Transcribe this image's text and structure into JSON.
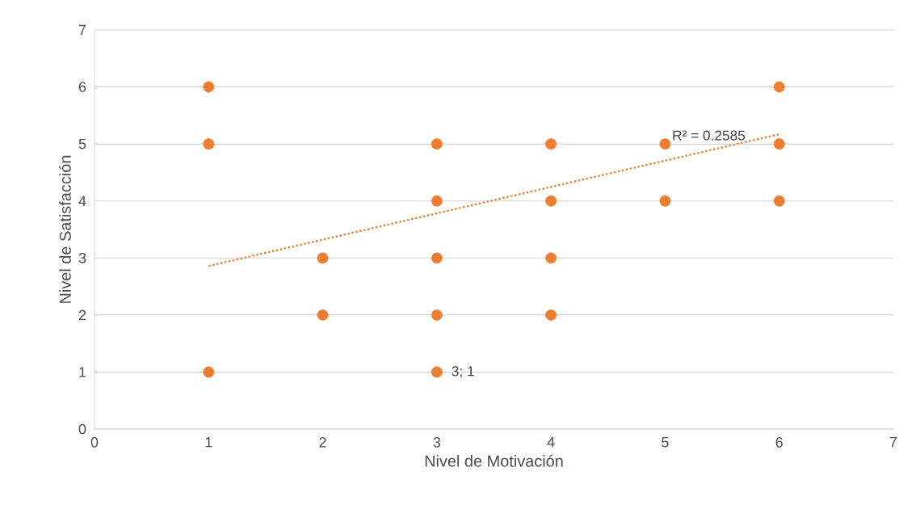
{
  "chart_data": {
    "type": "scatter",
    "xlabel": "Nivel de Motivación",
    "ylabel": "Nivel de Satisfacción",
    "xlim": [
      0,
      7
    ],
    "ylim": [
      0,
      7
    ],
    "xticks": [
      0,
      1,
      2,
      3,
      4,
      5,
      6,
      7
    ],
    "yticks": [
      0,
      1,
      2,
      3,
      4,
      5,
      6,
      7
    ],
    "grid": "y",
    "series": [
      {
        "color": "#ed7d31",
        "marker": "circle",
        "x": [
          1,
          1,
          1,
          2,
          2,
          3,
          3,
          3,
          3,
          3,
          4,
          4,
          4,
          4,
          5,
          5,
          6,
          6,
          6
        ],
        "values": [
          6,
          5,
          1,
          3,
          2,
          5,
          4,
          3,
          2,
          1,
          5,
          4,
          3,
          2,
          5,
          4,
          6,
          5,
          4
        ]
      },
      {
        "type": "line",
        "color": "#ed7d31",
        "line_style": "dotted",
        "marker": "none",
        "x": [
          1,
          6
        ],
        "values": [
          2.86,
          5.17
        ]
      }
    ],
    "annotations": [
      {
        "text": "R² = 0.2585",
        "x": 5,
        "y": 5.15
      },
      {
        "text": "3; 1",
        "x": 3,
        "y": 1
      }
    ]
  }
}
